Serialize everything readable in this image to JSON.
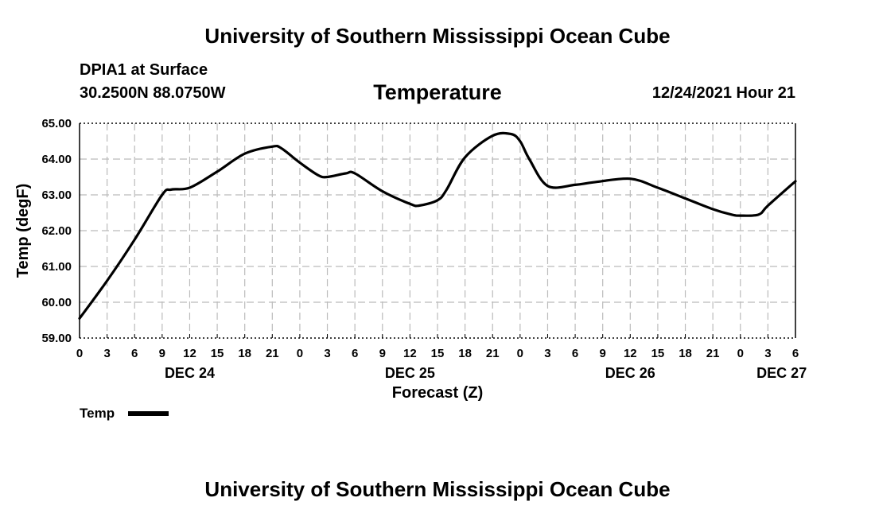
{
  "header": {
    "title": "University of Southern Mississippi Ocean Cube",
    "station": "DPIA1 at Surface",
    "coordinates": "30.2500N  88.0750W",
    "datetime": "12/24/2021 Hour 21"
  },
  "footer": {
    "title": "University of Southern Mississippi Ocean Cube"
  },
  "legend": {
    "label": "Temp"
  },
  "chart_data": {
    "type": "line",
    "title": "Temperature",
    "xlabel": "Forecast (Z)",
    "ylabel": "Temp (degF)",
    "ylim": [
      59,
      65
    ],
    "xlim": [
      0,
      78
    ],
    "grid": true,
    "x_unit": "hours from DEC 24 00Z",
    "y_ticks": [
      "59.00",
      "60.00",
      "61.00",
      "62.00",
      "63.00",
      "64.00",
      "65.00"
    ],
    "x_ticks": [
      "0",
      "3",
      "6",
      "9",
      "12",
      "15",
      "18",
      "21",
      "0",
      "3",
      "6",
      "9",
      "12",
      "15",
      "18",
      "21",
      "0",
      "3",
      "6",
      "9",
      "12",
      "15",
      "18",
      "21",
      "0",
      "3",
      "6"
    ],
    "date_labels": [
      {
        "label": "DEC 24",
        "hour": 12
      },
      {
        "label": "DEC 25",
        "hour": 36
      },
      {
        "label": "DEC 26",
        "hour": 60
      },
      {
        "label": "DEC 27",
        "hour": 76.5
      }
    ],
    "series": [
      {
        "name": "Temp",
        "x": [
          0,
          3,
          6,
          9,
          10,
          12,
          15,
          18,
          21,
          22,
          24,
          26,
          27,
          29,
          30,
          33,
          36,
          37,
          39,
          40,
          42,
          45,
          47,
          48,
          49,
          51,
          54,
          56,
          60,
          63,
          66,
          69,
          71,
          72,
          74,
          75,
          78
        ],
        "values": [
          59.55,
          60.6,
          61.75,
          63.0,
          63.15,
          63.2,
          63.65,
          64.15,
          64.35,
          64.3,
          63.9,
          63.55,
          63.5,
          63.6,
          63.6,
          63.1,
          62.75,
          62.7,
          62.85,
          63.15,
          64.05,
          64.65,
          64.7,
          64.5,
          64.0,
          63.25,
          63.28,
          63.35,
          63.45,
          63.2,
          62.9,
          62.6,
          62.45,
          62.42,
          62.45,
          62.7,
          63.38
        ]
      }
    ]
  }
}
